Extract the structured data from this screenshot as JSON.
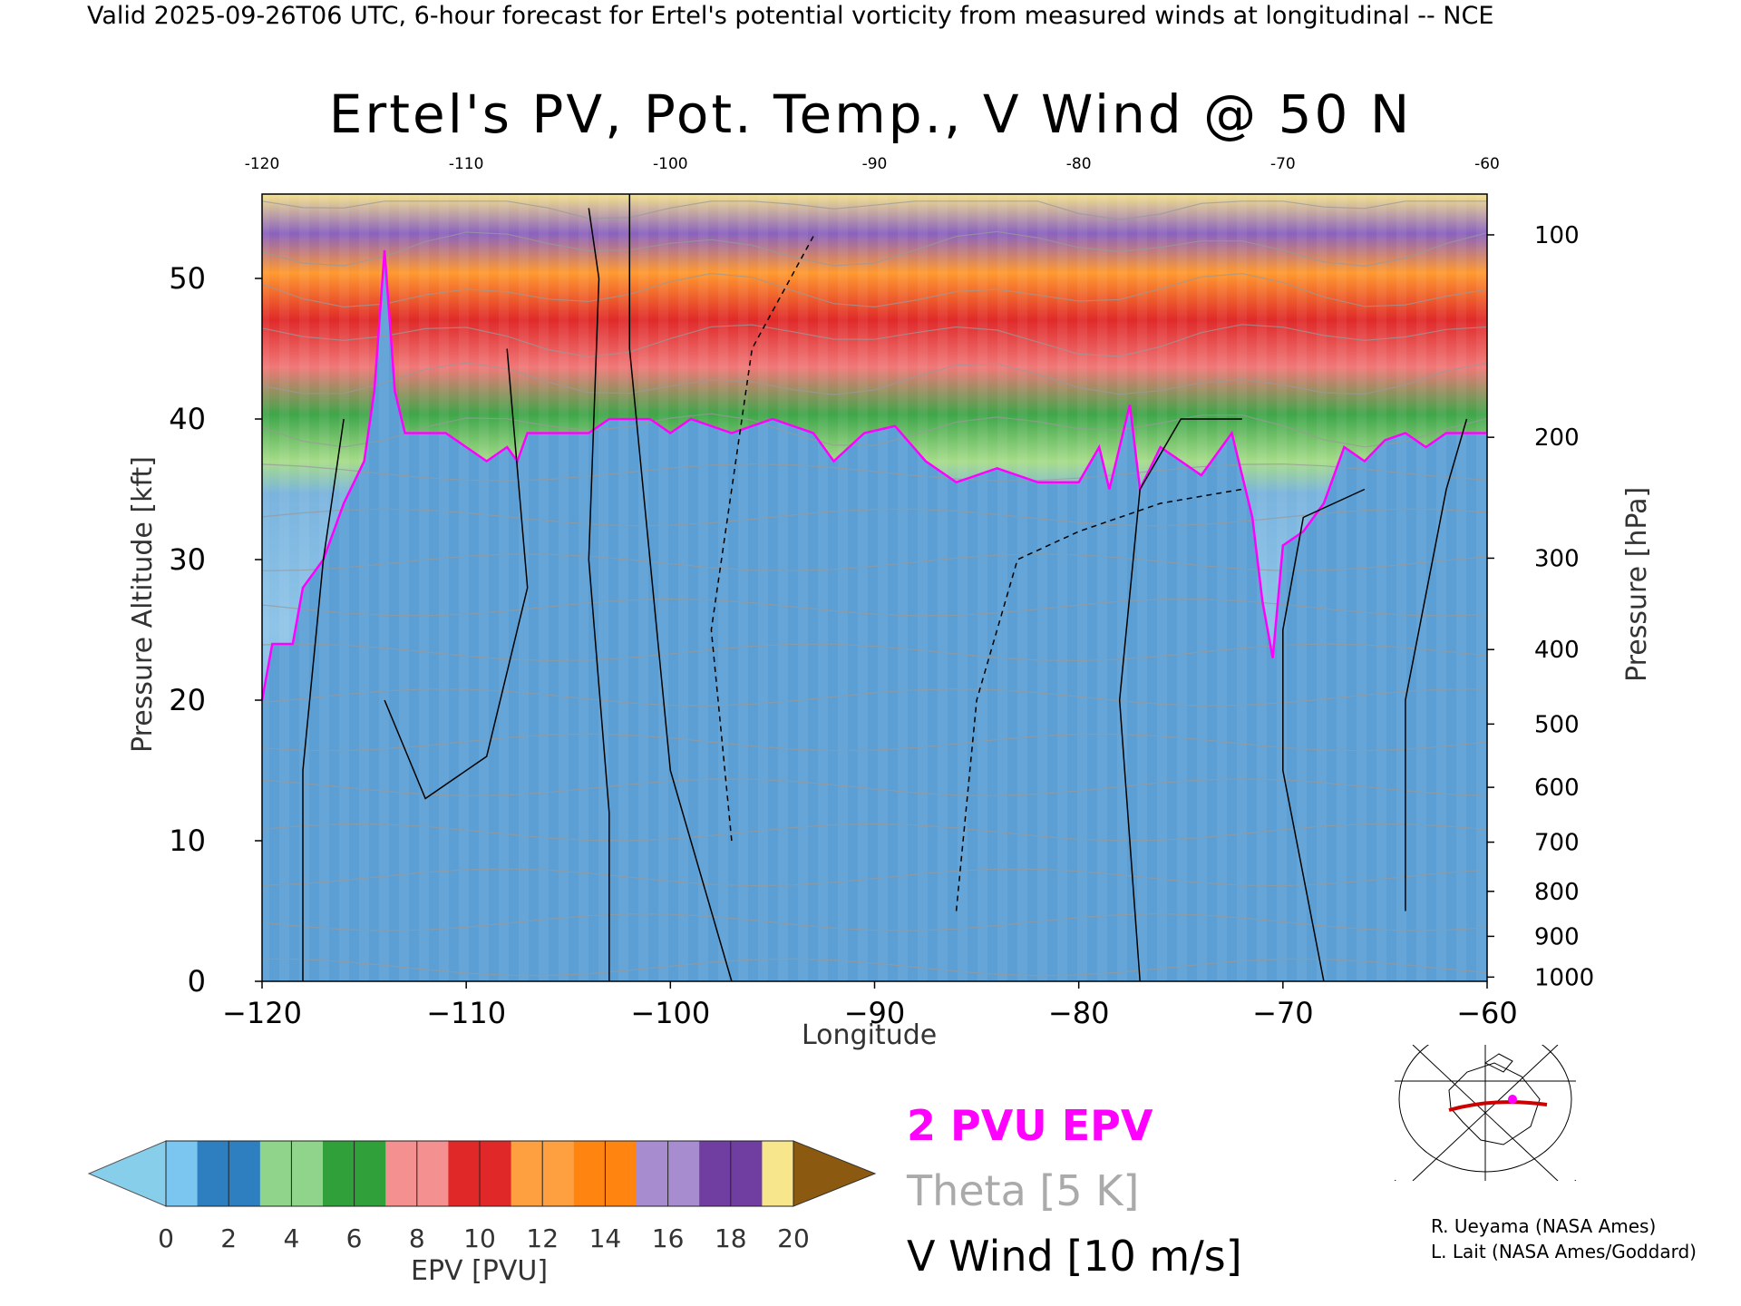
{
  "header": "Valid 2025-09-26T06 UTC, 6-hour forecast for Ertel's potential vorticity from measured winds at longitudinal -- NCE",
  "chart_data": {
    "type": "heatmap",
    "title": "Ertel's PV, Pot. Temp., V Wind @ 50 N",
    "xlabel": "Longitude",
    "ylabel_left": "Pressure Altitude [kft]",
    "ylabel_right": "Pressure [hPa]",
    "xlim": [
      -120,
      -60
    ],
    "ylim": [
      0,
      56
    ],
    "x_ticks": [
      -120,
      -110,
      -100,
      -90,
      -80,
      -70,
      -60
    ],
    "x_tick_labels": [
      "−120",
      "−110",
      "−100",
      "−90",
      "−80",
      "−70",
      "−60"
    ],
    "top_tick_labels": [
      "-120",
      "-110",
      "-100",
      "-90",
      "-80",
      "-70",
      "-60"
    ],
    "y_ticks": [
      0,
      10,
      20,
      30,
      40,
      50
    ],
    "y_tick_labels": [
      "0",
      "10",
      "20",
      "30",
      "40",
      "50"
    ],
    "pressure_ticks": [
      {
        "hpa": "100",
        "kft": 53.1
      },
      {
        "hpa": "200",
        "kft": 38.7
      },
      {
        "hpa": "300",
        "kft": 30.1
      },
      {
        "hpa": "400",
        "kft": 23.6
      },
      {
        "hpa": "500",
        "kft": 18.3
      },
      {
        "hpa": "600",
        "kft": 13.8
      },
      {
        "hpa": "700",
        "kft": 9.9
      },
      {
        "hpa": "800",
        "kft": 6.4
      },
      {
        "hpa": "900",
        "kft": 3.2
      },
      {
        "hpa": "1000",
        "kft": 0.3
      }
    ],
    "tropopause_2pvu_kft": [
      [
        -120,
        20
      ],
      [
        -119.5,
        24
      ],
      [
        -118.5,
        24
      ],
      [
        -118,
        28
      ],
      [
        -117,
        30
      ],
      [
        -116,
        34
      ],
      [
        -115,
        37
      ],
      [
        -114.5,
        42
      ],
      [
        -114,
        52
      ],
      [
        -113.5,
        42
      ],
      [
        -113,
        39
      ],
      [
        -111,
        39
      ],
      [
        -110,
        38
      ],
      [
        -109,
        37
      ],
      [
        -108,
        38
      ],
      [
        -107.5,
        37
      ],
      [
        -107,
        39
      ],
      [
        -104,
        39
      ],
      [
        -103,
        40
      ],
      [
        -101,
        40
      ],
      [
        -100,
        39
      ],
      [
        -99,
        40
      ],
      [
        -97,
        39
      ],
      [
        -95,
        40
      ],
      [
        -93,
        39
      ],
      [
        -92,
        37
      ],
      [
        -90.5,
        39
      ],
      [
        -89,
        39.5
      ],
      [
        -87.5,
        37
      ],
      [
        -86,
        35.5
      ],
      [
        -84,
        36.5
      ],
      [
        -82,
        35.5
      ],
      [
        -80,
        35.5
      ],
      [
        -79,
        38
      ],
      [
        -78.5,
        35
      ],
      [
        -77.5,
        41
      ],
      [
        -77,
        35
      ],
      [
        -76,
        38
      ],
      [
        -75,
        37
      ],
      [
        -74,
        36
      ],
      [
        -72.5,
        39
      ],
      [
        -71.5,
        33
      ],
      [
        -71,
        27
      ],
      [
        -70.5,
        23
      ],
      [
        -70,
        31
      ],
      [
        -69,
        32
      ],
      [
        -68,
        34
      ],
      [
        -67,
        38
      ],
      [
        -66,
        37
      ],
      [
        -65,
        38.5
      ],
      [
        -64,
        39
      ],
      [
        -63,
        38
      ],
      [
        -62,
        39
      ],
      [
        -60,
        39
      ]
    ],
    "v_wind_contours_m_s": [
      "-10",
      "0",
      "10",
      "20",
      "30"
    ],
    "theta_interval": "5 K",
    "colorbar": {
      "label": "EPV [PVU]",
      "ticks": [
        "0",
        "2",
        "4",
        "6",
        "8",
        "10",
        "12",
        "14",
        "16",
        "18",
        "20"
      ],
      "colors": [
        "#7bc6f0",
        "#2d7fc0",
        "#8fd48a",
        "#2fa03a",
        "#f59090",
        "#e02828",
        "#ffa040",
        "#ff8410",
        "#a88cd0",
        "#6f3ea0",
        "#f8e68c",
        "#8b5a10"
      ],
      "under_color": "#87ceeb",
      "over_color": "#8b5a10"
    },
    "legend": [
      {
        "text": "2 PVU EPV",
        "color": "#ff00ff"
      },
      {
        "text": "Theta [5 K]",
        "color": "#aaaaaa"
      },
      {
        "text": "V Wind [10 m/s]",
        "color": "#000000"
      }
    ]
  },
  "credits": [
    "R. Ueyama (NASA Ames)",
    "L. Lait (NASA Ames/Goddard)"
  ]
}
